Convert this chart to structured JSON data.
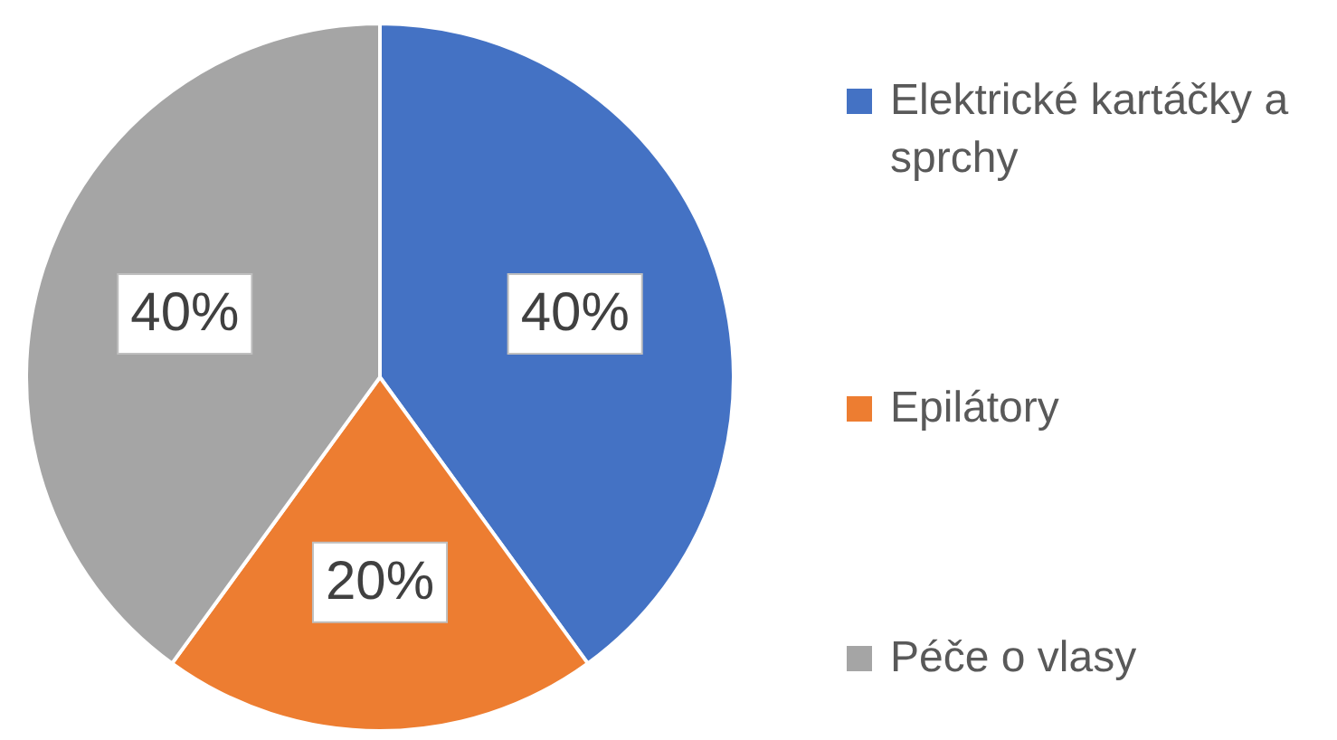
{
  "chart_data": {
    "type": "pie",
    "categories": [
      "Elektrické kartáčky a sprchy",
      "Epilátory",
      "Péče o vlasy"
    ],
    "values": [
      40,
      20,
      40
    ],
    "colors": [
      "#4472c4",
      "#ed7d31",
      "#a5a5a5"
    ],
    "value_labels": [
      "40%",
      "20%",
      "40%"
    ],
    "legend": "right"
  }
}
